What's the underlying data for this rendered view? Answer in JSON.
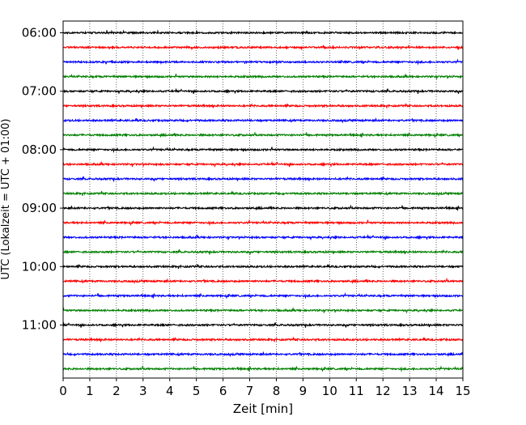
{
  "chart_data": {
    "type": "line",
    "title": "",
    "xlabel": "Zeit  [min]",
    "ylabel": "UTC (Lokalzeit = UTC + 01:00)",
    "xlim": [
      0,
      15
    ],
    "x_ticks": [
      0,
      1,
      2,
      3,
      4,
      5,
      6,
      7,
      8,
      9,
      10,
      11,
      12,
      13,
      14,
      15
    ],
    "x_tick_labels": [
      "0",
      "1",
      "2",
      "3",
      "4",
      "5",
      "6",
      "7",
      "8",
      "9",
      "10",
      "11",
      "12",
      "13",
      "14",
      "15"
    ],
    "y_tick_labels": [
      "06:00",
      "07:00",
      "08:00",
      "09:00",
      "10:00",
      "11:00"
    ],
    "grid": "vertical dotted",
    "legend": "none",
    "colors": [
      "#000000",
      "#ff0000",
      "#0000ff",
      "#008000"
    ],
    "trace_minutes": 15,
    "traces": [
      {
        "start": "06:00",
        "color": "#000000"
      },
      {
        "start": "06:15",
        "color": "#ff0000"
      },
      {
        "start": "06:30",
        "color": "#0000ff"
      },
      {
        "start": "06:45",
        "color": "#008000"
      },
      {
        "start": "07:00",
        "color": "#000000"
      },
      {
        "start": "07:15",
        "color": "#ff0000"
      },
      {
        "start": "07:30",
        "color": "#0000ff"
      },
      {
        "start": "07:45",
        "color": "#008000"
      },
      {
        "start": "08:00",
        "color": "#000000"
      },
      {
        "start": "08:15",
        "color": "#ff0000"
      },
      {
        "start": "08:30",
        "color": "#0000ff"
      },
      {
        "start": "08:45",
        "color": "#008000"
      },
      {
        "start": "09:00",
        "color": "#000000"
      },
      {
        "start": "09:15",
        "color": "#ff0000"
      },
      {
        "start": "09:30",
        "color": "#0000ff"
      },
      {
        "start": "09:45",
        "color": "#008000"
      },
      {
        "start": "10:00",
        "color": "#000000"
      },
      {
        "start": "10:15",
        "color": "#ff0000"
      },
      {
        "start": "10:30",
        "color": "#0000ff"
      },
      {
        "start": "10:45",
        "color": "#008000"
      },
      {
        "start": "11:00",
        "color": "#000000"
      },
      {
        "start": "11:15",
        "color": "#ff0000"
      },
      {
        "start": "11:30",
        "color": "#0000ff"
      },
      {
        "start": "11:45",
        "color": "#008000"
      }
    ]
  }
}
